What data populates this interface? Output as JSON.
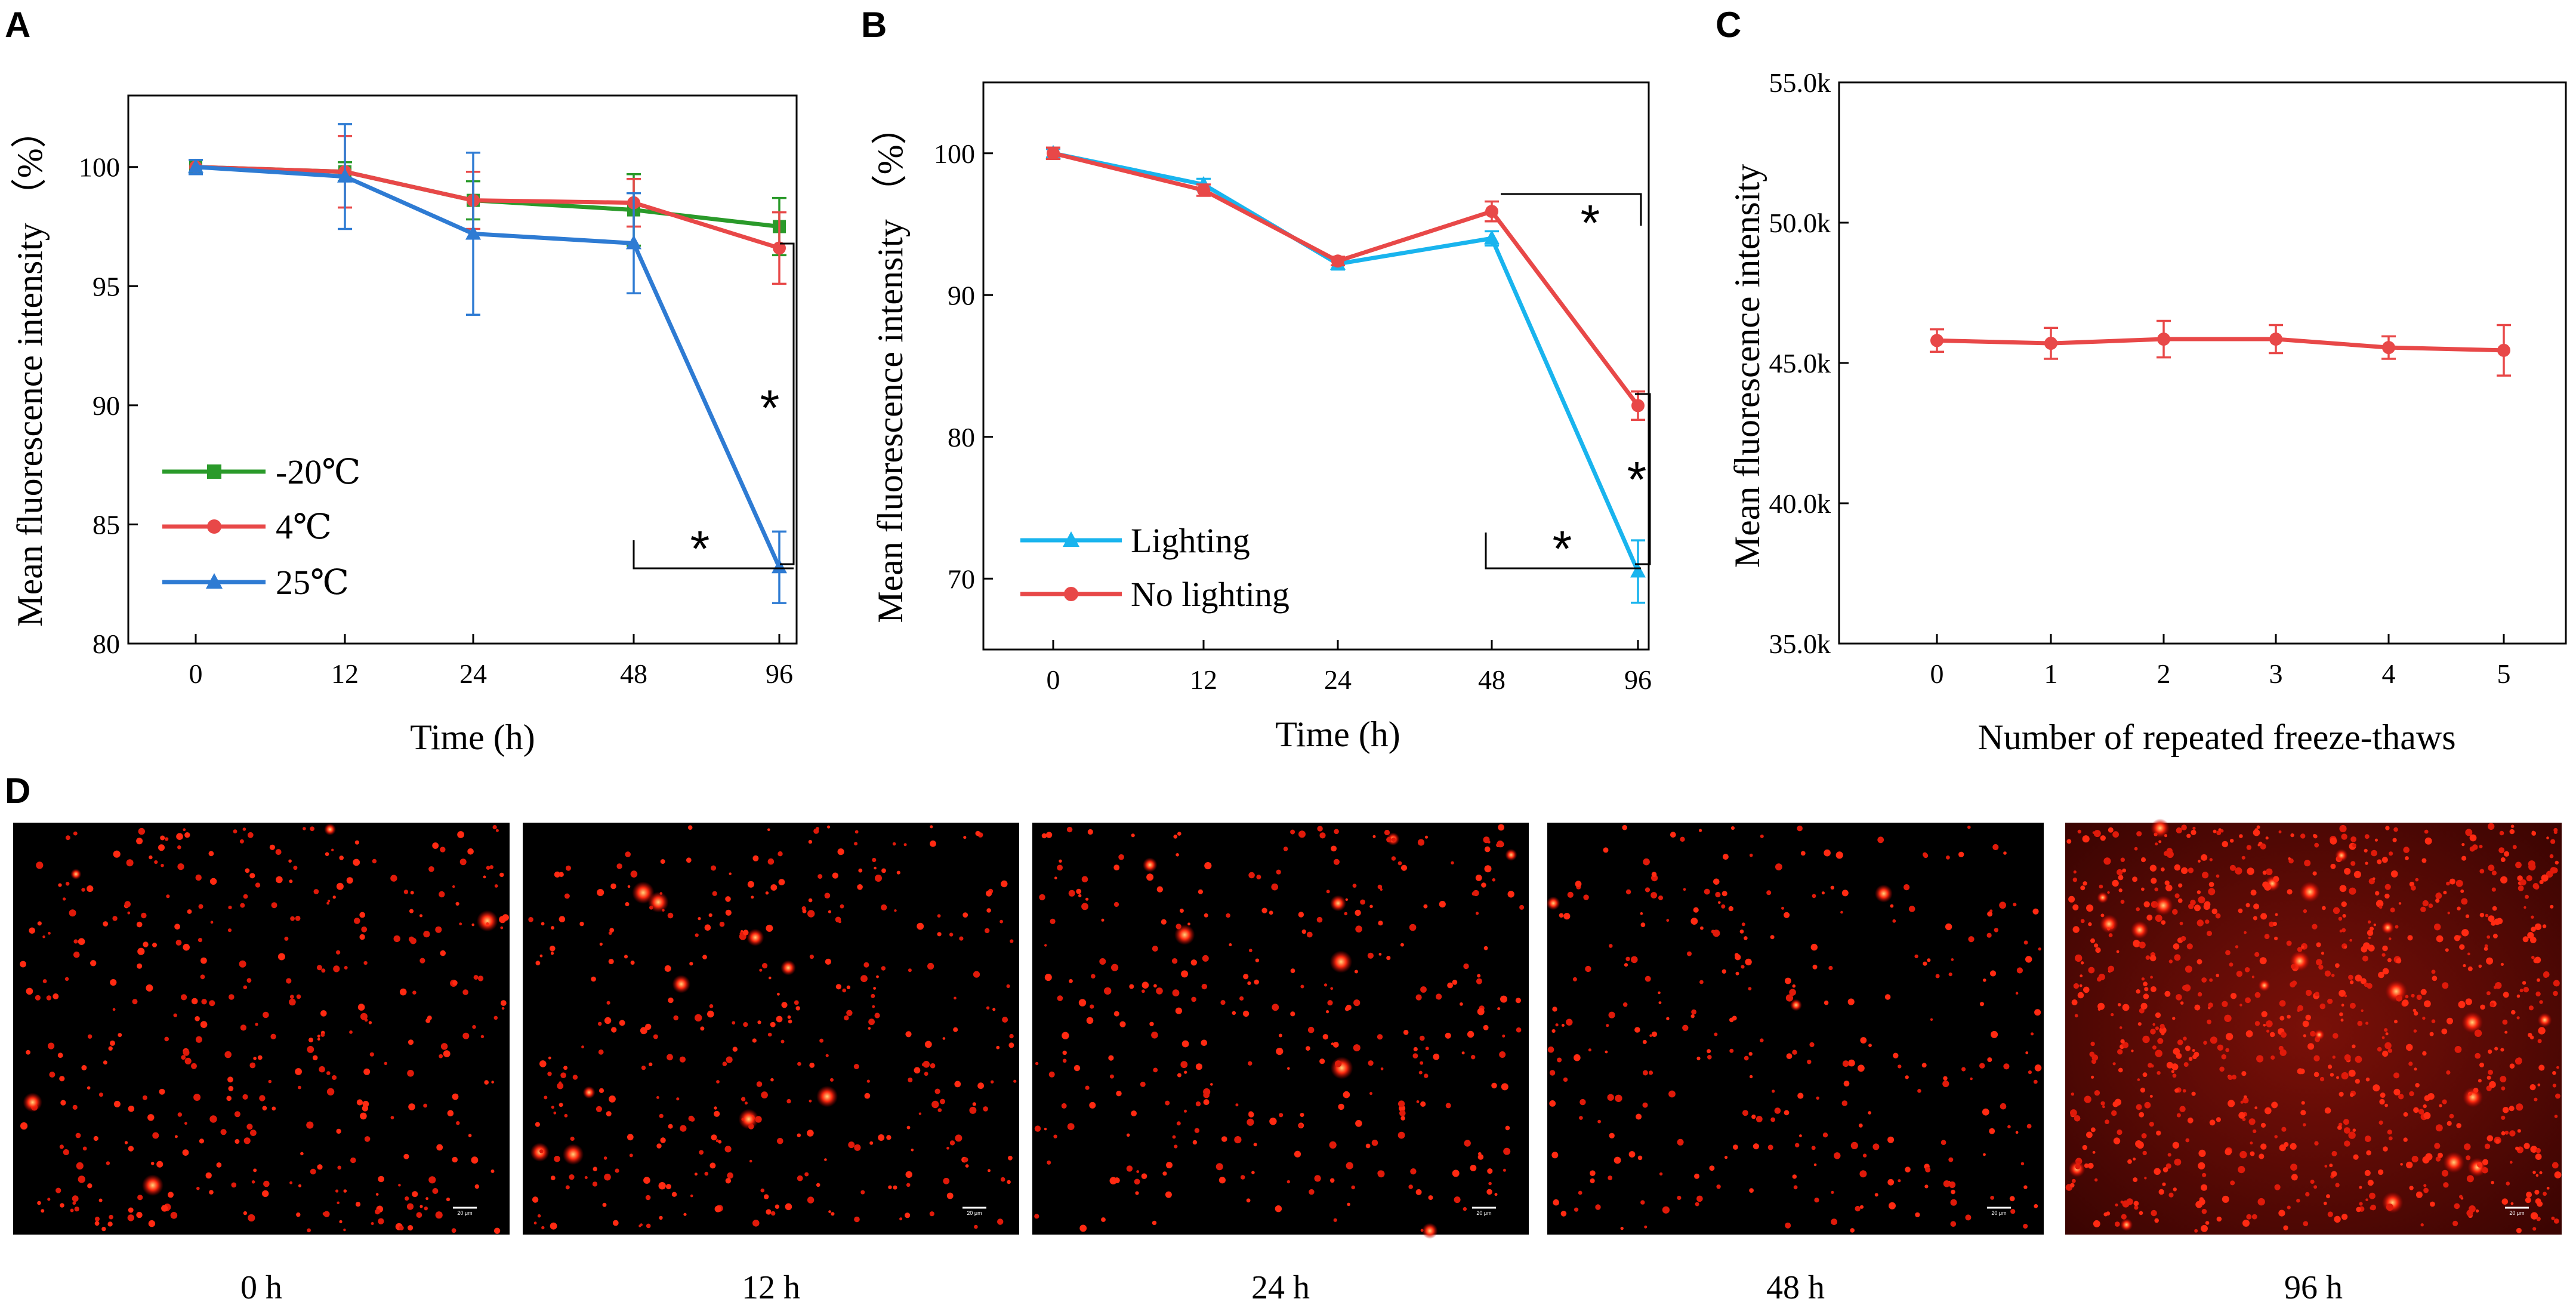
{
  "panels": {
    "A": {
      "letter": "A"
    },
    "B": {
      "letter": "B"
    },
    "C": {
      "letter": "C"
    },
    "D": {
      "letter": "D"
    }
  },
  "chart_data": [
    {
      "id": "A",
      "type": "line",
      "title": "",
      "xlabel": "Time (h)",
      "ylabel": "Mean fluorescence intensity （%）",
      "categories": [
        "0",
        "12",
        "24",
        "48",
        "96"
      ],
      "ylim": [
        80,
        103
      ],
      "yticks": [
        80,
        85,
        90,
        95,
        100
      ],
      "yticklabels": [
        "80",
        "85",
        "90",
        "95",
        "100"
      ],
      "legend_position": "bottom-left",
      "series": [
        {
          "name": "-20℃",
          "color": "#2a9a2a",
          "marker": "square",
          "values": [
            100.0,
            99.8,
            98.6,
            98.2,
            97.5
          ],
          "errors": [
            0.3,
            0.4,
            0.8,
            1.5,
            1.2
          ]
        },
        {
          "name": "4℃",
          "color": "#e84848",
          "marker": "circle",
          "values": [
            100.0,
            99.8,
            98.6,
            98.5,
            96.6
          ],
          "errors": [
            0.3,
            1.5,
            1.2,
            1.0,
            1.5
          ]
        },
        {
          "name": "25℃",
          "color": "#2e7bd3",
          "marker": "triangle",
          "values": [
            100.0,
            99.6,
            97.2,
            96.8,
            83.2
          ],
          "errors": [
            0.3,
            2.2,
            3.4,
            2.1,
            1.5
          ]
        }
      ],
      "significance": [
        "*",
        "*"
      ]
    },
    {
      "id": "B",
      "type": "line",
      "title": "",
      "xlabel": "Time (h)",
      "ylabel": "Mean fluorescence intensity （%）",
      "categories": [
        "0",
        "12",
        "24",
        "48",
        "96"
      ],
      "ylim": [
        65,
        105
      ],
      "yticks": [
        70,
        80,
        90,
        100
      ],
      "yticklabels": [
        "70",
        "80",
        "90",
        "100"
      ],
      "legend_position": "bottom-left",
      "series": [
        {
          "name": "Lighting",
          "color": "#19b4ee",
          "marker": "triangle",
          "values": [
            100.0,
            97.8,
            92.2,
            94.0,
            70.5
          ],
          "errors": [
            0.3,
            0.4,
            0.4,
            0.5,
            2.2
          ]
        },
        {
          "name": "No lighting",
          "color": "#e84848",
          "marker": "circle",
          "values": [
            100.0,
            97.4,
            92.4,
            95.9,
            82.2
          ],
          "errors": [
            0.4,
            0.4,
            0.3,
            0.7,
            1.0
          ]
        }
      ],
      "significance": [
        "*",
        "*",
        "*"
      ]
    },
    {
      "id": "C",
      "type": "line",
      "title": "",
      "xlabel": "Number of repeated freeze-thaws",
      "ylabel": "Mean fluorescence intensity",
      "categories": [
        "0",
        "1",
        "2",
        "3",
        "4",
        "5"
      ],
      "ylim": [
        35000,
        55000
      ],
      "yticks": [
        35000,
        40000,
        45000,
        50000,
        55000
      ],
      "yticklabels": [
        "35.0k",
        "40.0k",
        "45.0k",
        "50.0k",
        "55.0k"
      ],
      "series": [
        {
          "name": "",
          "color": "#e84848",
          "marker": "circle",
          "values": [
            45800,
            45700,
            45850,
            45850,
            45550,
            45450
          ],
          "errors": [
            400,
            550,
            650,
            500,
            400,
            900
          ]
        }
      ]
    }
  ],
  "micrographs": [
    {
      "caption": "0 h",
      "scale_bar": "20 μm"
    },
    {
      "caption": "12 h",
      "scale_bar": "20 μm"
    },
    {
      "caption": "24 h",
      "scale_bar": "20 μm"
    },
    {
      "caption": "48 h",
      "scale_bar": "20 μm"
    },
    {
      "caption": "96 h",
      "scale_bar": "20 μm"
    }
  ],
  "colors": {
    "green": "#2a9a2a",
    "red": "#e84848",
    "blue": "#2e7bd3",
    "cyan": "#19b4ee"
  }
}
